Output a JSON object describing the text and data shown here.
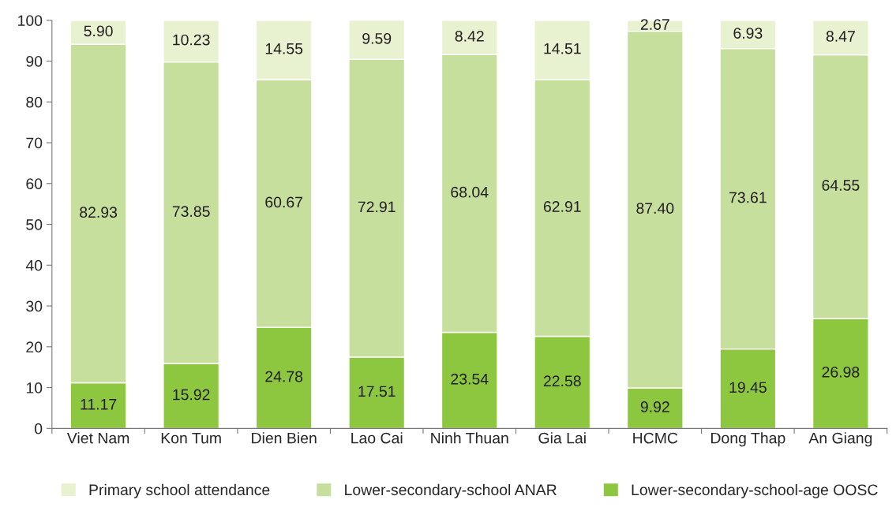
{
  "chart_data": {
    "type": "bar",
    "stacked": true,
    "categories": [
      "Viet Nam",
      "Kon Tum",
      "Dien Bien",
      "Lao Cai",
      "Ninh Thuan",
      "Gia Lai",
      "HCMC",
      "Dong Thap",
      "An Giang"
    ],
    "series": [
      {
        "name": "Lower-secondary-school-age OOSC",
        "color": "#8dc63f",
        "values": [
          11.17,
          15.92,
          24.78,
          17.51,
          23.54,
          22.58,
          9.92,
          19.45,
          26.98
        ],
        "value_labels": [
          "11.17",
          "15.92",
          "24.78",
          "17.51",
          "23.54",
          "22.58",
          "9.92",
          "19.45",
          "26.98"
        ]
      },
      {
        "name": "Lower-secondary-school ANAR",
        "color": "#c6df9c",
        "values": [
          82.93,
          73.85,
          60.67,
          72.91,
          68.04,
          62.91,
          87.4,
          73.61,
          64.55
        ],
        "value_labels": [
          "82.93",
          "73.85",
          "60.67",
          "72.91",
          "68.04",
          "62.91",
          "87.40",
          "73.61",
          "64.55"
        ]
      },
      {
        "name": "Primary school attendance",
        "color": "#e8f1d0",
        "values": [
          5.9,
          10.23,
          14.55,
          9.59,
          8.42,
          14.51,
          2.67,
          6.93,
          8.47
        ],
        "value_labels": [
          "5.90",
          "10.23",
          "14.55",
          "9.59",
          "8.42",
          "14.51",
          "2.67",
          "6.93",
          "8.47"
        ]
      }
    ],
    "ylim": [
      0,
      100
    ],
    "yticks": [
      0,
      10,
      20,
      30,
      40,
      50,
      60,
      70,
      80,
      90,
      100
    ],
    "grid": false,
    "legend": "bottom"
  }
}
